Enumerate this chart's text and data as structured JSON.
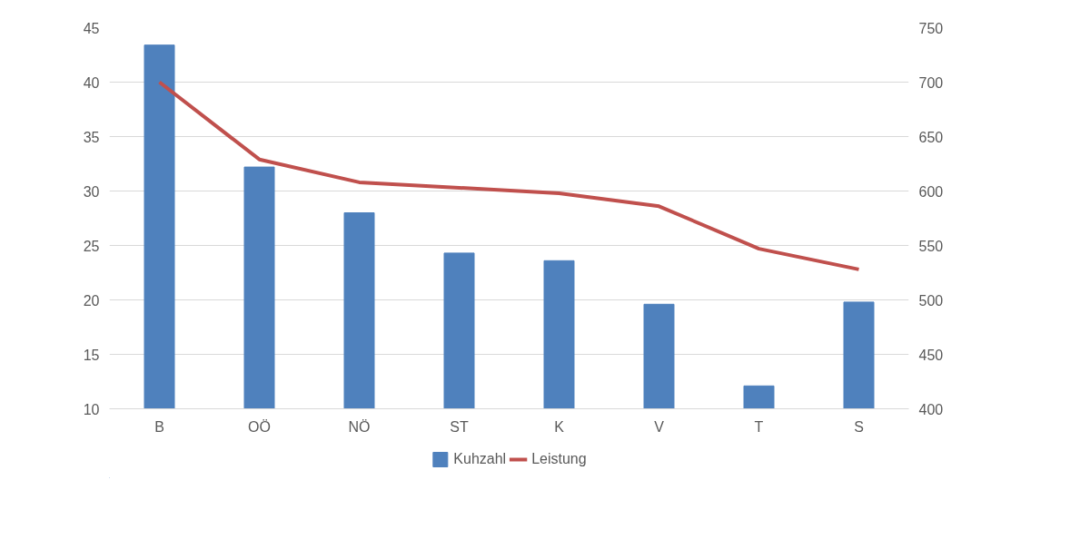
{
  "chart_data": {
    "type": "bar",
    "categories": [
      "B",
      "OÖ",
      "NÖ",
      "ST",
      "K",
      "V",
      "T",
      "S"
    ],
    "series": [
      {
        "name": "Kuhzahl",
        "color": "#4f81bd",
        "values": [
          43.4,
          32.2,
          28.0,
          24.3,
          23.6,
          19.6,
          12.1,
          19.8
        ]
      },
      {
        "name": "Leistung",
        "type": "line",
        "axis": "y2",
        "color": "#c0504d",
        "values": [
          700,
          629,
          608,
          603,
          598,
          586,
          547,
          528
        ]
      }
    ],
    "ylim": [
      10,
      45
    ],
    "yticks": [
      10,
      15,
      20,
      25,
      30,
      35,
      40,
      45
    ],
    "y2lim": [
      400,
      750
    ],
    "y2ticks": [
      400,
      450,
      500,
      550,
      600,
      650,
      700,
      750
    ],
    "grid": "y",
    "legend": "bottom"
  }
}
